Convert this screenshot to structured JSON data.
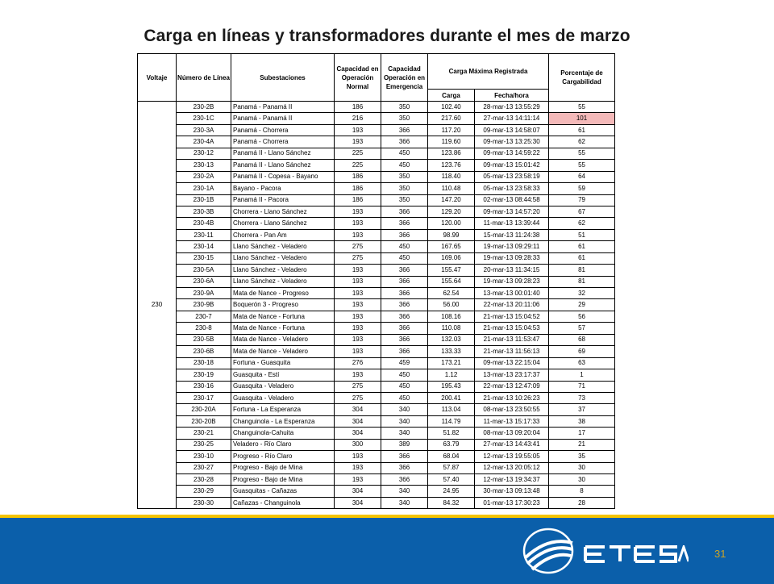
{
  "title": "Carga en líneas y transformadores durante el mes de marzo",
  "table": {
    "headers": {
      "voltaje": "Voltaje",
      "numero_linea": "Número de Línea",
      "subestaciones": "Subestaciones",
      "cap_normal": "Capacidad en Operación Normal",
      "cap_emergencia": "Capacidad Operación en Emergencia",
      "carga_maxima": "Carga Máxima Registrada",
      "porcentaje": "Porcentaje de Cargabilidad",
      "carga": "Carga",
      "fecha_hora": "Fecha/hora"
    },
    "voltage": "230",
    "rows": [
      {
        "line": "230-2B",
        "sub": "Panamá - Panamá II",
        "normal": "186",
        "emerg": "350",
        "carga": "102.40",
        "fecha": "28-mar-13 13:55:29",
        "pct": "55"
      },
      {
        "line": "230-1C",
        "sub": "Panamá - Panamá II",
        "normal": "216",
        "emerg": "350",
        "carga": "217.60",
        "fecha": "27-mar-13 14:11:14",
        "pct": "101",
        "highlight": true
      },
      {
        "line": "230-3A",
        "sub": "Panamá - Chorrera",
        "normal": "193",
        "emerg": "366",
        "carga": "117.20",
        "fecha": "09-mar-13 14:58:07",
        "pct": "61"
      },
      {
        "line": "230-4A",
        "sub": "Panamá - Chorrera",
        "normal": "193",
        "emerg": "366",
        "carga": "119.60",
        "fecha": "09-mar-13 13:25:30",
        "pct": "62"
      },
      {
        "line": "230-12",
        "sub": "Panamá II - Llano Sánchez",
        "normal": "225",
        "emerg": "450",
        "carga": "123.86",
        "fecha": "09-mar-13 14:59:22",
        "pct": "55"
      },
      {
        "line": "230-13",
        "sub": "Panamá II - Llano Sánchez",
        "normal": "225",
        "emerg": "450",
        "carga": "123.76",
        "fecha": "09-mar-13 15:01:42",
        "pct": "55"
      },
      {
        "line": "230-2A",
        "sub": "Panamá II - Copesa - Bayano",
        "normal": "186",
        "emerg": "350",
        "carga": "118.40",
        "fecha": "05-mar-13 23:58:19",
        "pct": "64"
      },
      {
        "line": "230-1A",
        "sub": "Bayano - Pacora",
        "normal": "186",
        "emerg": "350",
        "carga": "110.48",
        "fecha": "05-mar-13 23:58:33",
        "pct": "59"
      },
      {
        "line": "230-1B",
        "sub": "Panamá II - Pacora",
        "normal": "186",
        "emerg": "350",
        "carga": "147.20",
        "fecha": "02-mar-13 08:44:58",
        "pct": "79"
      },
      {
        "line": "230-3B",
        "sub": "Chorrera - Llano Sánchez",
        "normal": "193",
        "emerg": "366",
        "carga": "129.20",
        "fecha": "09-mar-13 14:57:20",
        "pct": "67"
      },
      {
        "line": "230-4B",
        "sub": "Chorrera - Llano Sánchez",
        "normal": "193",
        "emerg": "366",
        "carga": "120.00",
        "fecha": "11-mar-13 13:39:44",
        "pct": "62"
      },
      {
        "line": "230-11",
        "sub": "Chorrera - Pan Am",
        "normal": "193",
        "emerg": "366",
        "carga": "98.99",
        "fecha": "15-mar-13 11:24:38",
        "pct": "51"
      },
      {
        "line": "230-14",
        "sub": "Llano Sánchez - Veladero",
        "normal": "275",
        "emerg": "450",
        "carga": "167.65",
        "fecha": "19-mar-13 09:29:11",
        "pct": "61"
      },
      {
        "line": "230-15",
        "sub": "Llano Sánchez - Veladero",
        "normal": "275",
        "emerg": "450",
        "carga": "169.06",
        "fecha": "19-mar-13 09:28:33",
        "pct": "61"
      },
      {
        "line": "230-5A",
        "sub": "Llano Sánchez - Veladero",
        "normal": "193",
        "emerg": "366",
        "carga": "155.47",
        "fecha": "20-mar-13 11:34:15",
        "pct": "81"
      },
      {
        "line": "230-6A",
        "sub": "Llano Sánchez - Veladero",
        "normal": "193",
        "emerg": "366",
        "carga": "155.64",
        "fecha": "19-mar-13 09:28:23",
        "pct": "81"
      },
      {
        "line": "230-9A",
        "sub": "Mata de Nance - Progreso",
        "normal": "193",
        "emerg": "366",
        "carga": "62.54",
        "fecha": "13-mar-13 00:01:40",
        "pct": "32"
      },
      {
        "line": "230-9B",
        "sub": "Boquerón 3 - Progreso",
        "normal": "193",
        "emerg": "366",
        "carga": "56.00",
        "fecha": "22-mar-13 20:11:06",
        "pct": "29"
      },
      {
        "line": "230-7",
        "sub": "Mata de Nance - Fortuna",
        "normal": "193",
        "emerg": "366",
        "carga": "108.16",
        "fecha": "21-mar-13 15:04:52",
        "pct": "56"
      },
      {
        "line": "230-8",
        "sub": "Mata de Nance - Fortuna",
        "normal": "193",
        "emerg": "366",
        "carga": "110.08",
        "fecha": "21-mar-13 15:04:53",
        "pct": "57"
      },
      {
        "line": "230-5B",
        "sub": "Mata de Nance - Veladero",
        "normal": "193",
        "emerg": "366",
        "carga": "132.03",
        "fecha": "21-mar-13 11:53:47",
        "pct": "68"
      },
      {
        "line": "230-6B",
        "sub": "Mata de Nance - Veladero",
        "normal": "193",
        "emerg": "366",
        "carga": "133.33",
        "fecha": "21-mar-13 11:56:13",
        "pct": "69"
      },
      {
        "line": "230-18",
        "sub": "Fortuna - Guasquita",
        "normal": "276",
        "emerg": "459",
        "carga": "173.21",
        "fecha": "09-mar-13 22:15:04",
        "pct": "63"
      },
      {
        "line": "230-19",
        "sub": "Guasquita - Estí",
        "normal": "193",
        "emerg": "450",
        "carga": "1.12",
        "fecha": "13-mar-13 23:17:37",
        "pct": "1"
      },
      {
        "line": "230-16",
        "sub": "Guasquita - Veladero",
        "normal": "275",
        "emerg": "450",
        "carga": "195.43",
        "fecha": "22-mar-13 12:47:09",
        "pct": "71"
      },
      {
        "line": "230-17",
        "sub": "Guasquita - Veladero",
        "normal": "275",
        "emerg": "450",
        "carga": "200.41",
        "fecha": "21-mar-13 10:26:23",
        "pct": "73"
      },
      {
        "line": "230-20A",
        "sub": "Fortuna - La Esperanza",
        "normal": "304",
        "emerg": "340",
        "carga": "113.04",
        "fecha": "08-mar-13 23:50:55",
        "pct": "37"
      },
      {
        "line": "230-20B",
        "sub": "Changuinola - La Esperanza",
        "normal": "304",
        "emerg": "340",
        "carga": "114.79",
        "fecha": "11-mar-13 15:17:33",
        "pct": "38"
      },
      {
        "line": "230-21",
        "sub": "Changuinola-Cahuita",
        "normal": "304",
        "emerg": "340",
        "carga": "51.82",
        "fecha": "08-mar-13 09:20:04",
        "pct": "17"
      },
      {
        "line": "230-25",
        "sub": "Veladero - Río Claro",
        "normal": "300",
        "emerg": "389",
        "carga": "63.79",
        "fecha": "27-mar-13 14:43:41",
        "pct": "21"
      },
      {
        "line": "230-10",
        "sub": "Progreso - Río Claro",
        "normal": "193",
        "emerg": "366",
        "carga": "68.04",
        "fecha": "12-mar-13 19:55:05",
        "pct": "35"
      },
      {
        "line": "230-27",
        "sub": "Progreso - Bajo de Mina",
        "normal": "193",
        "emerg": "366",
        "carga": "57.87",
        "fecha": "12-mar-13 20:05:12",
        "pct": "30"
      },
      {
        "line": "230-28",
        "sub": "Progreso - Bajo de Mina",
        "normal": "193",
        "emerg": "366",
        "carga": "57.40",
        "fecha": "12-mar-13 19:34:37",
        "pct": "30"
      },
      {
        "line": "230-29",
        "sub": "Guasquitas - Cañazas",
        "normal": "304",
        "emerg": "340",
        "carga": "24.95",
        "fecha": "30-mar-13 09:13:48",
        "pct": "8"
      },
      {
        "line": "230-30",
        "sub": "Cañazas - Changuinola",
        "normal": "304",
        "emerg": "340",
        "carga": "84.32",
        "fecha": "01-mar-13 17:30:23",
        "pct": "28"
      }
    ]
  },
  "colors": {
    "footer_bar": "#0b5faa",
    "footer_stripe": "#f5c400",
    "highlight_cell": "#f4b9b9",
    "page_number": "#c9a227"
  },
  "footer": {
    "logo_text": "ETESA",
    "logo_icon": "globe-swoosh-icon",
    "page_number": "31"
  }
}
